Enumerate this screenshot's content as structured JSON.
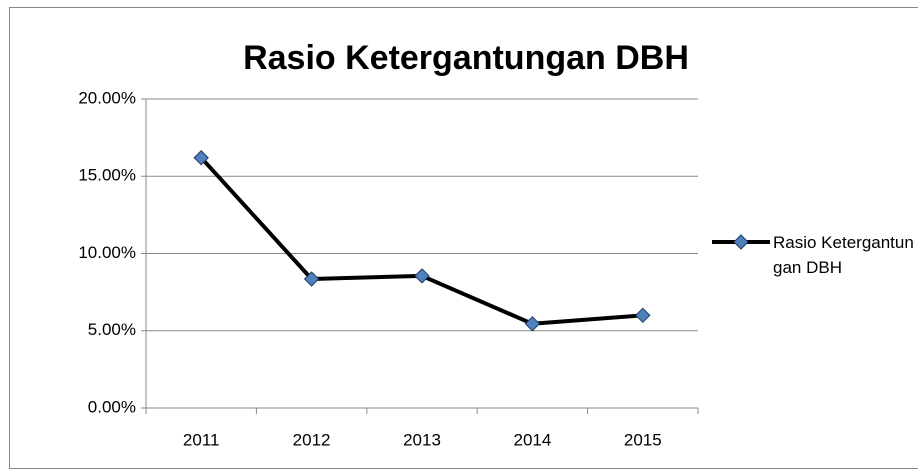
{
  "chart_data": {
    "type": "line",
    "title": "Rasio Ketergantungan DBH",
    "categories": [
      "2011",
      "2012",
      "2013",
      "2014",
      "2015"
    ],
    "series": [
      {
        "name": "Rasio Ketergantungan DBH",
        "color": "#4f81bd",
        "line_color": "#000000",
        "values": [
          16.2,
          8.35,
          8.55,
          5.45,
          6.0
        ]
      }
    ],
    "ylim": [
      0,
      20
    ],
    "yticks": [
      {
        "value": 0,
        "label": "0.00%"
      },
      {
        "value": 5,
        "label": "5.00%"
      },
      {
        "value": 10,
        "label": "10.00%"
      },
      {
        "value": 15,
        "label": "15.00%"
      },
      {
        "value": 20,
        "label": "20.00%"
      }
    ],
    "grid": true,
    "legend": "right"
  }
}
